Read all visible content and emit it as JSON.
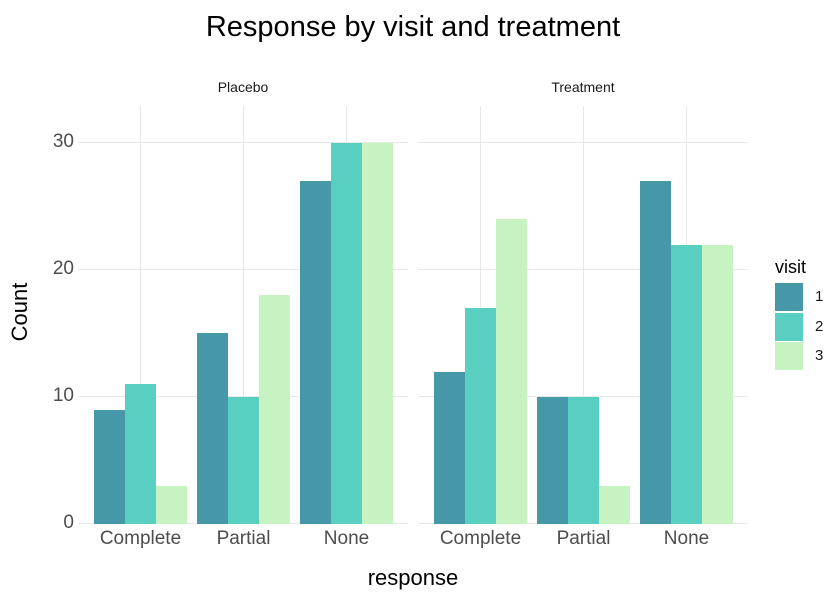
{
  "chart_data": {
    "type": "bar",
    "grouping": "dodged",
    "faceting": "by treatment arm",
    "title": "Response by visit and treatment",
    "xlabel": "response",
    "ylabel": "Count",
    "categories": [
      "Complete",
      "Partial",
      "None"
    ],
    "facets": [
      {
        "label": "Placebo",
        "series": [
          {
            "name": "1",
            "values": [
              9,
              15,
              27
            ]
          },
          {
            "name": "2",
            "values": [
              11,
              10,
              30
            ]
          },
          {
            "name": "3",
            "values": [
              3,
              18,
              30
            ]
          }
        ]
      },
      {
        "label": "Treatment",
        "series": [
          {
            "name": "1",
            "values": [
              12,
              10,
              27
            ]
          },
          {
            "name": "2",
            "values": [
              17,
              10,
              22
            ]
          },
          {
            "name": "3",
            "values": [
              24,
              3,
              22
            ]
          }
        ]
      }
    ],
    "y_ticks": [
      0,
      10,
      20,
      30
    ],
    "ylim": [
      0,
      32.8
    ],
    "grid": "major horizontal and vertical, no axis lines, no tick marks",
    "legend": {
      "title": "visit",
      "entries": [
        "1",
        "2",
        "3"
      ],
      "position": "right"
    },
    "colors": {
      "1": "#4697a7",
      "2": "#58cfc0",
      "3": "#c7f2c1"
    },
    "gridline_color": "#e8e8e8",
    "axis_text_color": "#4d4d4d",
    "strip_text_color": "#1a1a1a",
    "background_color": "#ffffff"
  }
}
